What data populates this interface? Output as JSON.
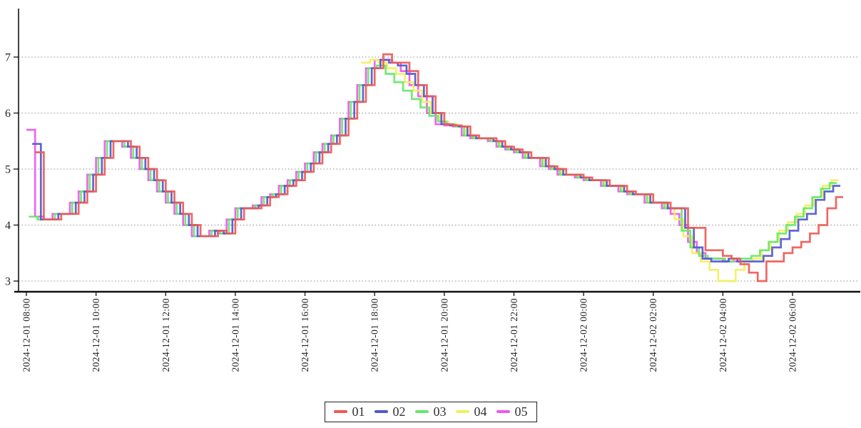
{
  "chart_data": {
    "type": "line",
    "step_mode": "after",
    "title": "",
    "xlabel": "",
    "ylabel": "",
    "grid": "horizontal-dotted",
    "legend_position": "bottom-center",
    "x_start": "2024-12-01 08:00",
    "interval_minutes": 15,
    "x_axis": {
      "ticks": [
        "2024-12-01 08:00",
        "2024-12-01 10:00",
        "2024-12-01 12:00",
        "2024-12-01 14:00",
        "2024-12-01 16:00",
        "2024-12-01 18:00",
        "2024-12-01 20:00",
        "2024-12-01 22:00",
        "2024-12-02 00:00",
        "2024-12-02 02:00",
        "2024-12-02 04:00",
        "2024-12-02 06:00"
      ]
    },
    "y_axis": {
      "ticks": [
        3,
        4,
        5,
        6,
        7
      ],
      "range": [
        2.8,
        7.8
      ]
    },
    "series": [
      {
        "name": "01",
        "color": "#ee5a55",
        "start_minute": 15,
        "values": [
          5.3,
          4.1,
          4.1,
          4.2,
          4.2,
          4.4,
          4.6,
          4.9,
          5.2,
          5.5,
          5.5,
          5.4,
          5.2,
          5.0,
          4.8,
          4.6,
          4.4,
          4.2,
          4.0,
          3.8,
          3.8,
          3.9,
          3.85,
          4.1,
          4.3,
          4.3,
          4.35,
          4.5,
          4.55,
          4.7,
          4.8,
          4.95,
          5.1,
          5.3,
          5.45,
          5.6,
          5.9,
          6.2,
          6.5,
          6.8,
          7.05,
          6.9,
          6.9,
          6.75,
          6.5,
          6.3,
          6.0,
          5.8,
          5.78,
          5.76,
          5.6,
          5.55,
          5.55,
          5.5,
          5.4,
          5.35,
          5.3,
          5.2,
          5.2,
          5.05,
          5.0,
          4.9,
          4.9,
          4.85,
          4.8,
          4.8,
          4.7,
          4.7,
          4.6,
          4.55,
          4.55,
          4.4,
          4.4,
          4.3,
          4.3,
          3.95,
          3.95,
          3.55,
          3.55,
          3.45,
          3.4,
          3.3,
          3.15,
          3.0,
          3.35,
          3.35,
          3.5,
          3.6,
          3.7,
          3.85,
          4.0,
          4.3,
          4.5
        ]
      },
      {
        "name": "02",
        "color": "#5158cf",
        "start_minute": 10,
        "values": [
          5.45,
          4.1,
          4.1,
          4.2,
          4.2,
          4.4,
          4.6,
          4.9,
          5.2,
          5.5,
          5.5,
          5.4,
          5.2,
          5.0,
          4.8,
          4.6,
          4.4,
          4.2,
          4.0,
          3.8,
          3.8,
          3.9,
          3.85,
          4.1,
          4.3,
          4.3,
          4.35,
          4.5,
          4.55,
          4.7,
          4.8,
          4.95,
          5.1,
          5.3,
          5.45,
          5.6,
          5.9,
          6.2,
          6.5,
          6.8,
          6.95,
          6.9,
          6.85,
          6.7,
          6.5,
          6.3,
          6.0,
          5.8,
          5.78,
          5.76,
          5.6,
          5.55,
          5.55,
          5.5,
          5.4,
          5.35,
          5.3,
          5.2,
          5.2,
          5.05,
          5.0,
          4.9,
          4.9,
          4.85,
          4.8,
          4.8,
          4.7,
          4.7,
          4.6,
          4.55,
          4.55,
          4.4,
          4.4,
          4.3,
          4.3,
          3.95,
          3.6,
          3.4,
          3.35,
          3.35,
          3.4,
          3.35,
          3.35,
          3.35,
          3.45,
          3.6,
          3.75,
          3.9,
          4.1,
          4.2,
          4.45,
          4.6,
          4.7
        ]
      },
      {
        "name": "03",
        "color": "#67e76b",
        "start_minute": 4,
        "values": [
          4.15,
          4.1,
          4.1,
          4.2,
          4.2,
          4.4,
          4.6,
          4.9,
          5.2,
          5.5,
          5.5,
          5.4,
          5.2,
          5.0,
          4.8,
          4.6,
          4.4,
          4.2,
          4.0,
          3.8,
          3.8,
          3.9,
          3.85,
          4.1,
          4.3,
          4.3,
          4.35,
          4.5,
          4.55,
          4.7,
          4.8,
          4.95,
          5.1,
          5.3,
          5.45,
          5.6,
          5.9,
          6.2,
          6.5,
          6.8,
          6.85,
          6.7,
          6.55,
          6.4,
          6.25,
          6.1,
          5.95,
          5.85,
          5.8,
          5.76,
          5.6,
          5.55,
          5.55,
          5.5,
          5.4,
          5.35,
          5.3,
          5.2,
          5.2,
          5.05,
          5.0,
          4.9,
          4.9,
          4.85,
          4.8,
          4.8,
          4.7,
          4.7,
          4.6,
          4.55,
          4.55,
          4.4,
          4.4,
          4.3,
          4.3,
          3.9,
          3.6,
          3.45,
          3.4,
          3.4,
          3.35,
          3.4,
          3.4,
          3.45,
          3.55,
          3.7,
          3.85,
          4.0,
          4.15,
          4.3,
          4.5,
          4.65,
          4.75
        ]
      },
      {
        "name": "04",
        "color": "#f2ef5d",
        "start_minute": 577,
        "values": [
          6.9,
          6.95,
          6.9,
          6.8,
          6.7,
          6.55,
          6.4,
          6.2,
          6.0,
          5.85,
          5.8,
          5.76,
          5.6,
          5.55,
          5.55,
          5.5,
          5.4,
          5.35,
          5.3,
          5.2,
          5.2,
          5.05,
          5.0,
          4.9,
          4.9,
          4.85,
          4.8,
          4.8,
          4.7,
          4.7,
          4.6,
          4.55,
          4.55,
          4.4,
          4.4,
          4.3,
          4.1,
          3.8,
          3.5,
          3.35,
          3.2,
          3.0,
          3.0,
          3.2,
          3.35,
          3.4,
          3.55,
          3.7,
          3.9,
          4.05,
          4.2,
          4.35,
          4.5,
          4.7,
          4.8
        ]
      },
      {
        "name": "05",
        "color": "#ee58ed",
        "start_minute": 0,
        "values": [
          5.7,
          4.15,
          4.1,
          4.2,
          4.2,
          4.4,
          4.6,
          4.9,
          5.2,
          5.5,
          5.5,
          5.4,
          5.2,
          5.0,
          4.8,
          4.6,
          4.4,
          4.2,
          4.0,
          3.8,
          3.8,
          3.9,
          3.85,
          4.1,
          4.3,
          4.3,
          4.35,
          4.5,
          4.55,
          4.7,
          4.8,
          4.95,
          5.1,
          5.3,
          5.45,
          5.6,
          5.9,
          6.2,
          6.5,
          6.8,
          6.95,
          6.95,
          6.9,
          6.75,
          6.5,
          6.3,
          6.0,
          5.8,
          5.78,
          5.76,
          5.6,
          5.55,
          5.55,
          5.5,
          5.4,
          5.35,
          5.3,
          5.2,
          5.2,
          5.05,
          5.0,
          4.9,
          4.9,
          4.85,
          4.8,
          4.8,
          4.7,
          4.7,
          4.6,
          4.55,
          4.55,
          4.4,
          4.4,
          4.3,
          4.2,
          4.0,
          3.7,
          3.5,
          3.4,
          3.4,
          3.35,
          3.35
        ]
      }
    ]
  }
}
